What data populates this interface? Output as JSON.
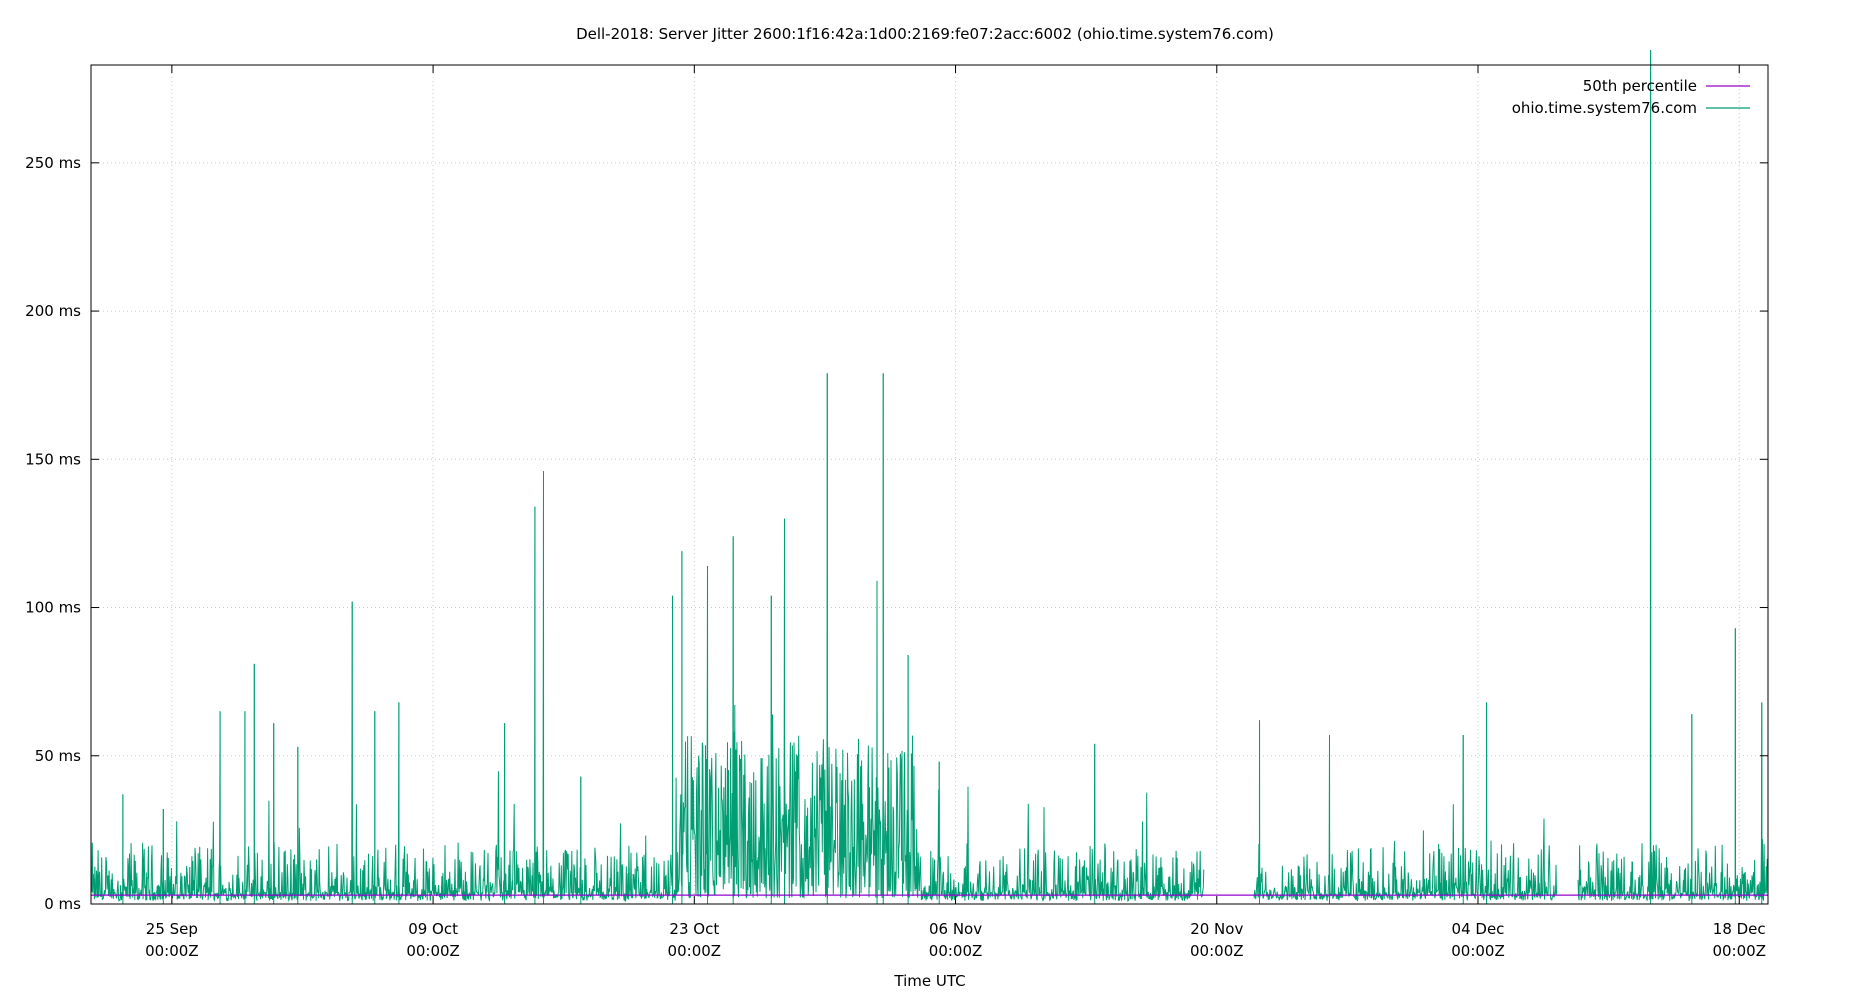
{
  "chart_data": {
    "type": "line",
    "title": "Dell-2018: Server Jitter 2600:1f16:42a:1d00:2169:fe07:2acc:6002 (ohio.time.system76.com)",
    "xlabel": "Time UTC",
    "ylabel": "",
    "xlim": [
      "09-20 16:00",
      "12-19 13:00"
    ],
    "ylim": [
      0,
      283
    ],
    "grid": true,
    "legend_position": "top-right",
    "y_ticks": [
      {
        "value": 0,
        "label": "0 ms"
      },
      {
        "value": 50,
        "label": "50 ms"
      },
      {
        "value": 100,
        "label": "100 ms"
      },
      {
        "value": 150,
        "label": "150 ms"
      },
      {
        "value": 200,
        "label": "200 ms"
      },
      {
        "value": 250,
        "label": "250 ms"
      }
    ],
    "x_ticks": [
      {
        "value": "09-25 00:00",
        "label": "25 Sep",
        "label2": "00:00Z"
      },
      {
        "value": "10-09 00:00",
        "label": "09 Oct",
        "label2": "00:00Z"
      },
      {
        "value": "10-23 00:00",
        "label": "23 Oct",
        "label2": "00:00Z"
      },
      {
        "value": "11-06 00:00",
        "label": "06 Nov",
        "label2": "00:00Z"
      },
      {
        "value": "11-20 00:00",
        "label": "20 Nov",
        "label2": "00:00Z"
      },
      {
        "value": "12-04 00:00",
        "label": "04 Dec",
        "label2": "00:00Z"
      },
      {
        "value": "12-18 00:00",
        "label": "18 Dec",
        "label2": "00:00Z"
      }
    ],
    "series": [
      {
        "name": "50th percentile",
        "color": "#9400d3",
        "value": 3
      },
      {
        "name": "ohio.time.system76.com",
        "color": "#009e73",
        "typical_range": [
          1,
          15
        ],
        "busy_period": {
          "start": "10-22 00:00",
          "end": "11-04 00:00",
          "typical_range": [
            2,
            60
          ]
        },
        "gaps": [
          [
            "11-19 08:00",
            "11-22 00:00"
          ],
          [
            "12-08 06:00",
            "12-09 08:00"
          ]
        ],
        "peaks": [
          {
            "x": "09-22 09:00",
            "y": 37
          },
          {
            "x": "09-24 13:00",
            "y": 32
          },
          {
            "x": "09-27 14:00",
            "y": 65
          },
          {
            "x": "09-28 22:00",
            "y": 65
          },
          {
            "x": "09-29 10:00",
            "y": 81
          },
          {
            "x": "09-30 11:00",
            "y": 61
          },
          {
            "x": "10-01 18:00",
            "y": 53
          },
          {
            "x": "10-04 16:00",
            "y": 102
          },
          {
            "x": "10-05 21:00",
            "y": 65
          },
          {
            "x": "10-07 04:00",
            "y": 68
          },
          {
            "x": "10-12 20:00",
            "y": 61
          },
          {
            "x": "10-14 11:00",
            "y": 134
          },
          {
            "x": "10-14 22:00",
            "y": 146
          },
          {
            "x": "10-16 22:00",
            "y": 43
          },
          {
            "x": "10-21 20:00",
            "y": 104
          },
          {
            "x": "10-22 08:00",
            "y": 119
          },
          {
            "x": "10-23 17:00",
            "y": 114
          },
          {
            "x": "10-25 02:00",
            "y": 124
          },
          {
            "x": "10-27 03:00",
            "y": 104
          },
          {
            "x": "10-27 20:00",
            "y": 130
          },
          {
            "x": "10-30 03:00",
            "y": 179
          },
          {
            "x": "11-01 19:00",
            "y": 109
          },
          {
            "x": "11-02 03:00",
            "y": 179
          },
          {
            "x": "11-03 11:00",
            "y": 84
          },
          {
            "x": "11-05 03:00",
            "y": 48
          },
          {
            "x": "11-13 11:00",
            "y": 54
          },
          {
            "x": "11-22 07:00",
            "y": 62
          },
          {
            "x": "11-26 01:00",
            "y": 57
          },
          {
            "x": "12-03 05:00",
            "y": 57
          },
          {
            "x": "12-04 11:00",
            "y": 68
          },
          {
            "x": "12-13 06:00",
            "y": 300
          },
          {
            "x": "12-15 11:00",
            "y": 64
          },
          {
            "x": "12-17 19:00",
            "y": 93
          },
          {
            "x": "12-19 05:00",
            "y": 68
          }
        ]
      }
    ]
  }
}
